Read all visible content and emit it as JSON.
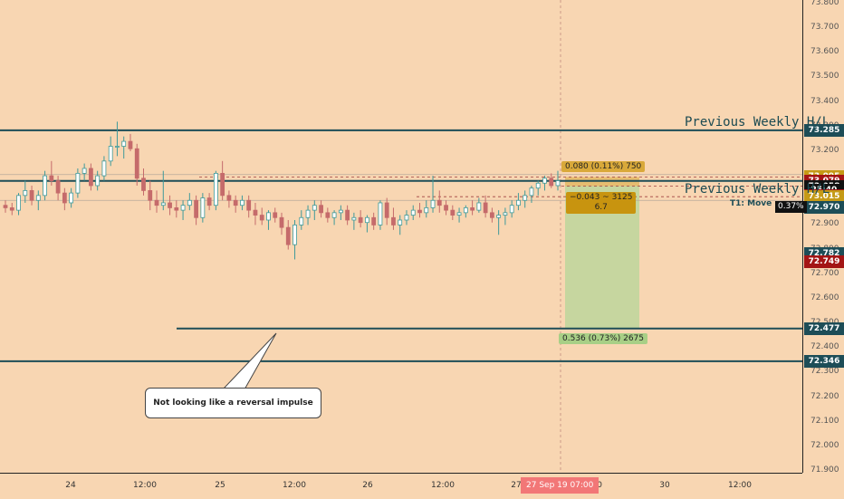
{
  "chart_data": {
    "type": "candlestick",
    "ylim": [
      71.9,
      73.8
    ],
    "price_ticks": [
      "73.800",
      "73.700",
      "73.600",
      "73.500",
      "73.400",
      "73.300",
      "73.200",
      "73.100",
      "73.000",
      "72.900",
      "72.800",
      "72.700",
      "72.600",
      "72.500",
      "72.400",
      "72.300",
      "72.200",
      "72.100",
      "72.000",
      "71.900"
    ],
    "time_labels": [
      "24",
      "12:00",
      "25",
      "12:00",
      "26",
      "12:00",
      "27",
      "12:00",
      "30",
      "12:00"
    ],
    "horizontal_levels": [
      {
        "label": "Previous Weekly H/L",
        "price": 73.285
      },
      {
        "label": "Previous Weekly H/L",
        "price": 73.079
      },
      {
        "label": "",
        "price": 72.479
      },
      {
        "label": "",
        "price": 72.346
      }
    ],
    "annotation": "Not looking like a reversal impulse",
    "position": {
      "target": "0.080 (0.11%) 750",
      "middle_line1": "−0.043 ~ 3125",
      "middle_line2": "6.7",
      "stop": "0.536 (0.73%) 2675",
      "t1_label": "T1: Move",
      "percent": "0.37%"
    },
    "price_badges": [
      {
        "text": "73.285",
        "price": 73.285,
        "color": "#1d4d57"
      },
      {
        "text": "73.095",
        "price": 73.095,
        "color": "#c59a16"
      },
      {
        "text": "73.079",
        "price": 73.079,
        "color": "#a31515"
      },
      {
        "text": "73.058",
        "price": 73.058,
        "color": "#111111"
      },
      {
        "text": "25:40",
        "price": 73.04,
        "color": "#111111"
      },
      {
        "text": "73.019",
        "price": 73.019,
        "color": "#1d4d57"
      },
      {
        "text": "73.018",
        "price": 73.018,
        "color": "#a31515"
      },
      {
        "text": "73.015",
        "price": 73.015,
        "color": "#c59a16"
      },
      {
        "text": "72.970",
        "price": 72.97,
        "color": "#1d4d57"
      },
      {
        "text": "72.782",
        "price": 72.782,
        "color": "#1d4d57"
      },
      {
        "text": "72.749",
        "price": 72.749,
        "color": "#a31515"
      },
      {
        "text": "72.479",
        "price": 72.479,
        "color": "#7fb56a"
      },
      {
        "text": "72.477",
        "price": 72.477,
        "color": "#1d4d57"
      },
      {
        "text": "72.346",
        "price": 72.346,
        "color": "#1d4d57"
      }
    ],
    "crosshair_time": "27 Sep 19  07:00",
    "candles": [
      [
        72.98,
        73.0,
        72.95,
        72.97
      ],
      [
        72.97,
        72.99,
        72.94,
        72.96
      ],
      [
        72.96,
        73.03,
        72.94,
        73.02
      ],
      [
        73.02,
        73.08,
        72.99,
        73.04
      ],
      [
        73.04,
        73.06,
        72.98,
        73.0
      ],
      [
        73.0,
        73.04,
        72.96,
        73.02
      ],
      [
        73.02,
        73.12,
        73.0,
        73.1
      ],
      [
        73.1,
        73.16,
        73.06,
        73.08
      ],
      [
        73.08,
        73.1,
        73.0,
        73.03
      ],
      [
        73.03,
        73.05,
        72.96,
        72.99
      ],
      [
        72.99,
        73.05,
        72.97,
        73.03
      ],
      [
        73.03,
        73.13,
        73.01,
        73.11
      ],
      [
        73.11,
        73.15,
        73.08,
        73.13
      ],
      [
        73.13,
        73.15,
        73.04,
        73.06
      ],
      [
        73.06,
        73.12,
        73.04,
        73.1
      ],
      [
        73.1,
        73.18,
        73.08,
        73.16
      ],
      [
        73.16,
        73.26,
        73.14,
        73.22
      ],
      [
        73.22,
        73.32,
        73.18,
        73.22
      ],
      [
        73.22,
        73.26,
        73.17,
        73.24
      ],
      [
        73.24,
        73.27,
        73.2,
        73.21
      ],
      [
        73.21,
        73.23,
        73.06,
        73.09
      ],
      [
        73.09,
        73.13,
        73.02,
        73.04
      ],
      [
        73.04,
        73.08,
        72.96,
        73.0
      ],
      [
        73.0,
        73.04,
        72.95,
        72.98
      ],
      [
        72.98,
        73.12,
        72.96,
        72.99
      ],
      [
        72.99,
        73.02,
        72.94,
        72.97
      ],
      [
        72.97,
        73.0,
        72.93,
        72.96
      ],
      [
        72.96,
        73.0,
        72.92,
        72.98
      ],
      [
        72.98,
        73.03,
        72.96,
        73.0
      ],
      [
        73.0,
        73.02,
        72.9,
        72.93
      ],
      [
        72.93,
        73.03,
        72.91,
        73.01
      ],
      [
        73.01,
        73.03,
        72.96,
        72.98
      ],
      [
        72.98,
        73.12,
        72.96,
        73.11
      ],
      [
        73.11,
        73.16,
        73.0,
        73.02
      ],
      [
        73.02,
        73.04,
        72.97,
        73.0
      ],
      [
        73.0,
        73.02,
        72.95,
        72.98
      ],
      [
        72.98,
        73.02,
        72.96,
        73.0
      ],
      [
        73.0,
        73.02,
        72.93,
        72.96
      ],
      [
        72.96,
        72.99,
        72.9,
        72.94
      ],
      [
        72.94,
        72.97,
        72.9,
        72.92
      ],
      [
        72.92,
        72.96,
        72.88,
        72.95
      ],
      [
        72.95,
        72.97,
        72.91,
        72.93
      ],
      [
        72.93,
        72.95,
        72.86,
        72.89
      ],
      [
        72.89,
        72.92,
        72.8,
        72.82
      ],
      [
        72.82,
        72.92,
        72.76,
        72.9
      ],
      [
        72.9,
        72.96,
        72.88,
        72.93
      ],
      [
        72.93,
        72.98,
        72.9,
        72.96
      ],
      [
        72.96,
        73.0,
        72.92,
        72.98
      ],
      [
        72.98,
        73.0,
        72.93,
        72.95
      ],
      [
        72.95,
        72.97,
        72.91,
        72.93
      ],
      [
        72.93,
        72.96,
        72.9,
        72.95
      ],
      [
        72.95,
        72.98,
        72.92,
        72.96
      ],
      [
        72.96,
        72.98,
        72.9,
        72.92
      ],
      [
        72.92,
        72.95,
        72.88,
        72.93
      ],
      [
        72.93,
        72.96,
        72.89,
        72.91
      ],
      [
        72.91,
        72.94,
        72.87,
        72.93
      ],
      [
        72.93,
        72.95,
        72.88,
        72.9
      ],
      [
        72.9,
        73.0,
        72.88,
        72.99
      ],
      [
        72.99,
        73.01,
        72.9,
        72.93
      ],
      [
        72.93,
        72.97,
        72.88,
        72.9
      ],
      [
        72.9,
        72.94,
        72.86,
        72.92
      ],
      [
        72.92,
        72.96,
        72.9,
        72.94
      ],
      [
        72.94,
        72.98,
        72.92,
        72.96
      ],
      [
        72.96,
        72.99,
        72.93,
        72.95
      ],
      [
        72.95,
        73.0,
        72.93,
        72.97
      ],
      [
        72.97,
        73.1,
        72.95,
        73.0
      ],
      [
        73.0,
        73.04,
        72.95,
        72.98
      ],
      [
        72.98,
        73.0,
        72.94,
        72.96
      ],
      [
        72.96,
        72.98,
        72.92,
        72.94
      ],
      [
        72.94,
        72.97,
        72.91,
        72.95
      ],
      [
        72.95,
        72.98,
        72.93,
        72.97
      ],
      [
        72.97,
        73.0,
        72.94,
        72.96
      ],
      [
        72.96,
        73.01,
        72.95,
        72.99
      ],
      [
        72.99,
        73.02,
        72.93,
        72.95
      ],
      [
        72.95,
        72.97,
        72.91,
        72.93
      ],
      [
        72.93,
        72.96,
        72.86,
        72.94
      ],
      [
        72.94,
        72.97,
        72.9,
        72.95
      ],
      [
        72.95,
        73.0,
        72.93,
        72.98
      ],
      [
        72.98,
        73.03,
        72.96,
        73.0
      ],
      [
        73.0,
        73.04,
        72.97,
        73.02
      ],
      [
        73.02,
        73.06,
        72.99,
        73.05
      ],
      [
        73.05,
        73.08,
        73.02,
        73.07
      ],
      [
        73.07,
        73.1,
        73.04,
        73.09
      ],
      [
        73.09,
        73.11,
        73.05,
        73.06
      ],
      [
        73.06,
        73.12,
        73.04,
        73.08
      ]
    ]
  }
}
